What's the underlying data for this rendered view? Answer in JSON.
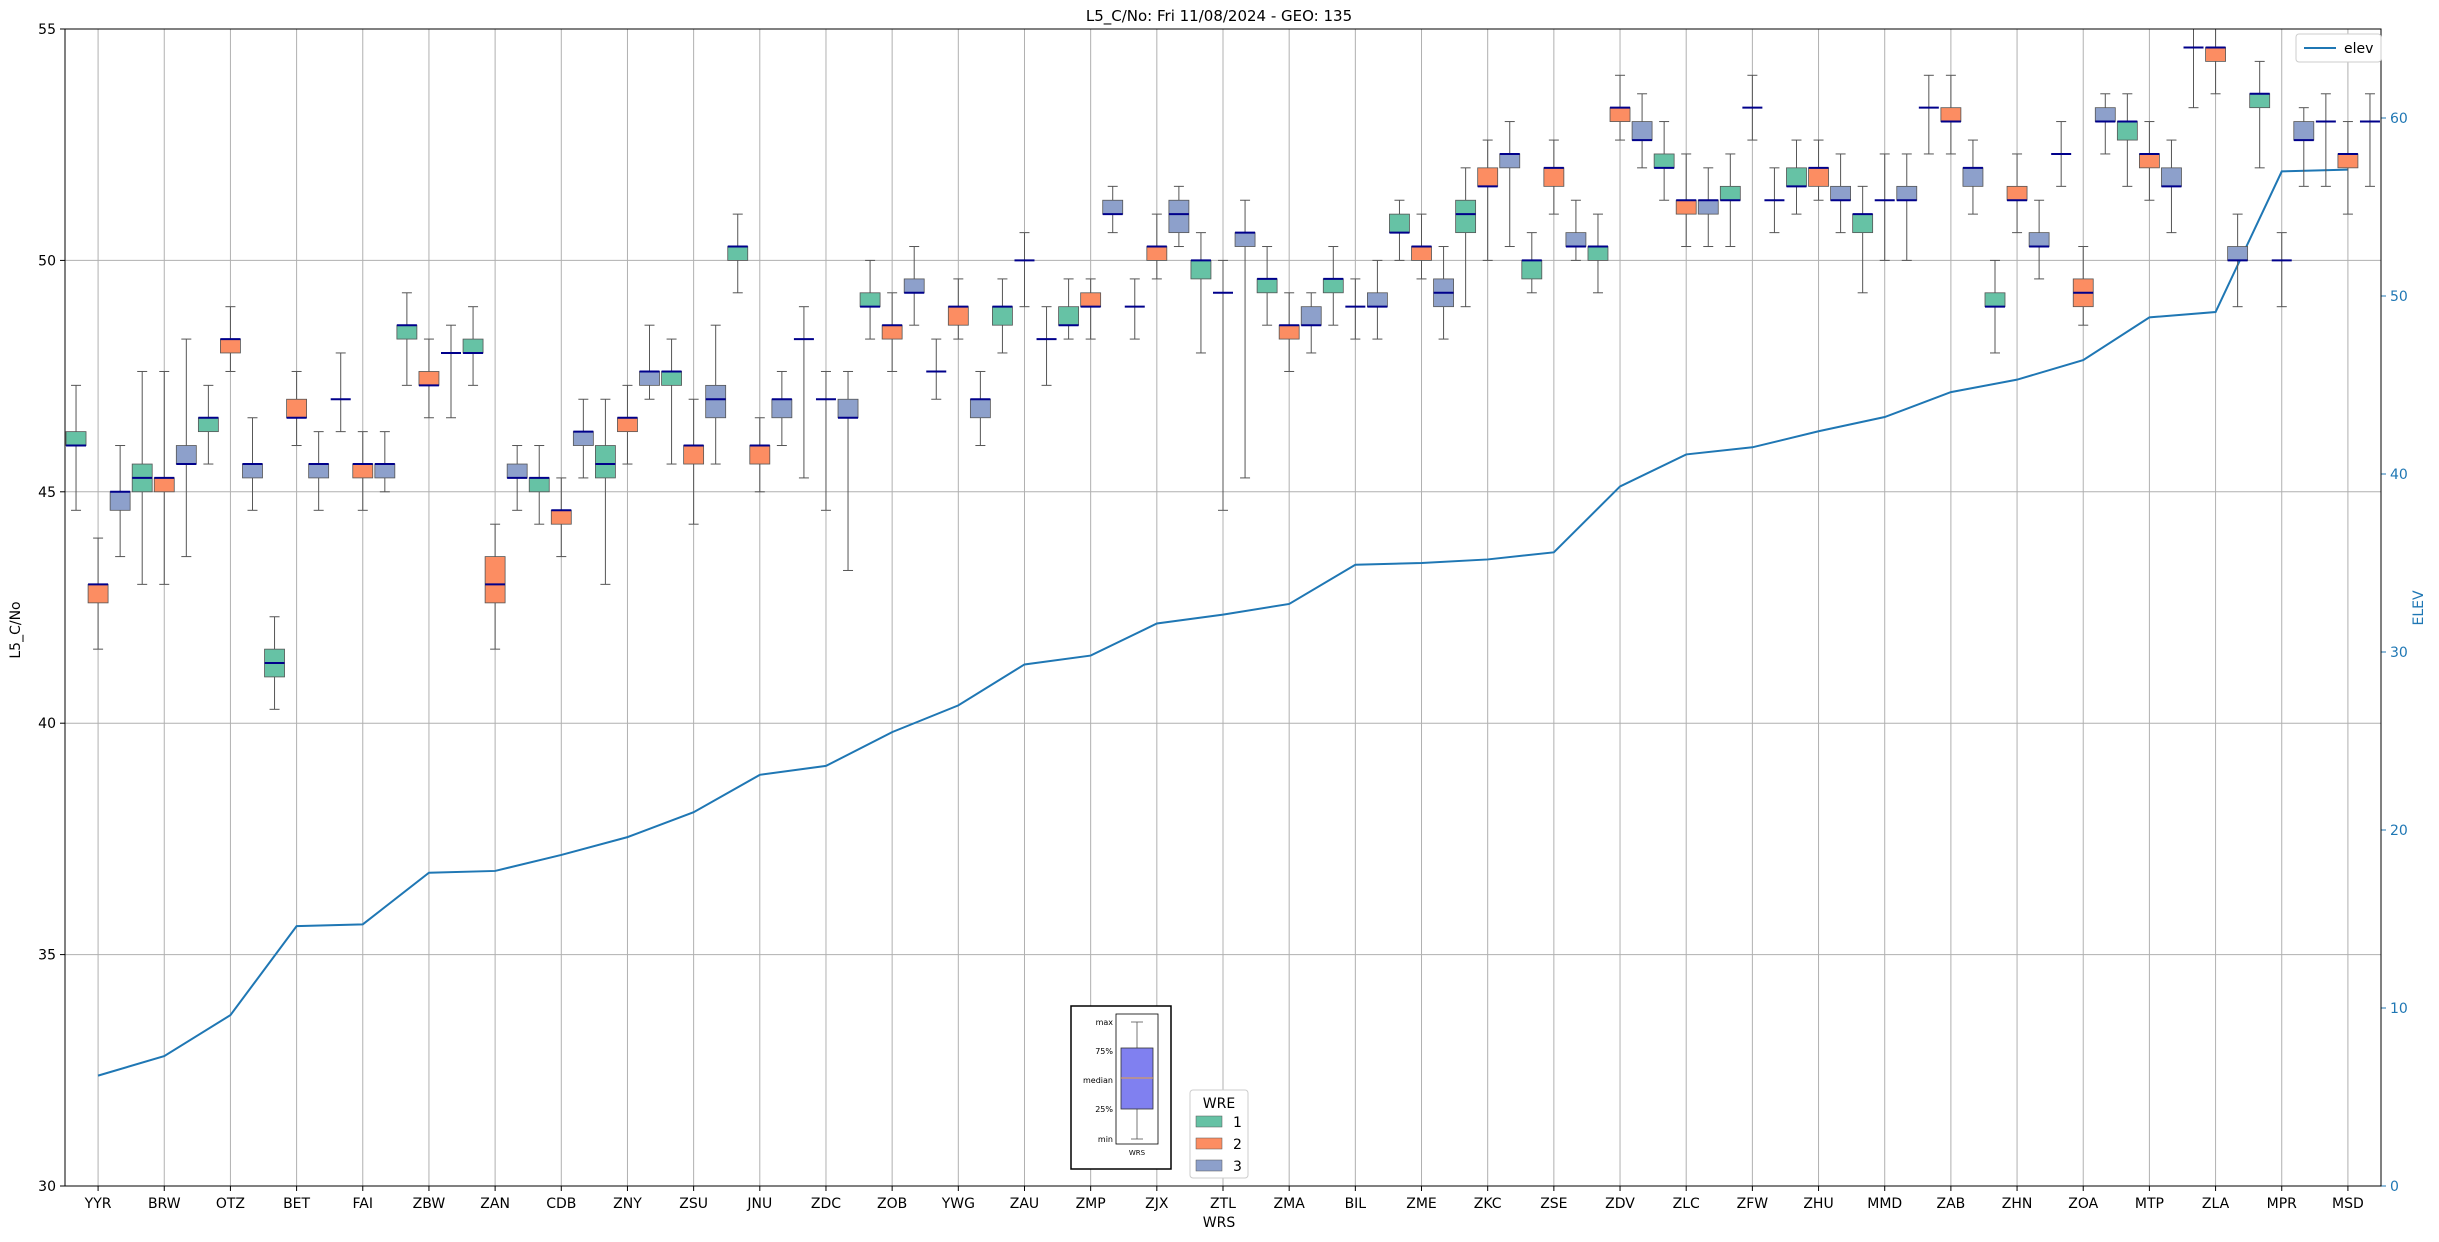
{
  "chart_data": {
    "type": "box",
    "title": "L5_C/No: Fri 11/08/2024 - GEO: 135",
    "xlabel": "WRS",
    "ylabel": "L5_C/No",
    "y2label": "ELEV",
    "ylim": [
      30,
      55
    ],
    "y2lim": [
      0,
      65
    ],
    "yticks": [
      30,
      35,
      40,
      45,
      50,
      55
    ],
    "y2ticks": [
      0,
      10,
      20,
      30,
      40,
      50,
      60
    ],
    "grid": true,
    "categories": [
      "YYR",
      "BRW",
      "OTZ",
      "BET",
      "FAI",
      "ZBW",
      "ZAN",
      "CDB",
      "ZNY",
      "ZSU",
      "JNU",
      "ZDC",
      "ZOB",
      "YWG",
      "ZAU",
      "ZMP",
      "ZJX",
      "ZTL",
      "ZMA",
      "BIL",
      "ZME",
      "ZKC",
      "ZSE",
      "ZDV",
      "ZLC",
      "ZFW",
      "ZHU",
      "MMD",
      "ZAB",
      "ZHN",
      "ZOA",
      "MTP",
      "ZLA",
      "MPR",
      "MSD"
    ],
    "colors": {
      "1": "#66c2a5",
      "2": "#fc8d62",
      "3": "#8da0cb",
      "elev": "#1f77b4",
      "median": "#00008b",
      "whisker": "#555555"
    },
    "legend_wre": {
      "title": "WRE",
      "items": [
        "1",
        "2",
        "3"
      ],
      "placement": "bottom-center"
    },
    "legend_elev": {
      "label": "elev",
      "placement": "top-right"
    },
    "box_key": {
      "labels": [
        "max",
        "75%",
        "median",
        "25%",
        "min"
      ],
      "xlabel": "WRS"
    },
    "boxes": [
      {
        "cat": "YYR",
        "wre": 1,
        "min": 44.6,
        "q1": 46.0,
        "med": 46.0,
        "q3": 46.3,
        "max": 47.3
      },
      {
        "cat": "YYR",
        "wre": 2,
        "min": 41.6,
        "q1": 42.6,
        "med": 43.0,
        "q3": 43.0,
        "max": 44.0
      },
      {
        "cat": "YYR",
        "wre": 3,
        "min": 43.6,
        "q1": 44.6,
        "med": 45.0,
        "q3": 45.0,
        "max": 46.0
      },
      {
        "cat": "BRW",
        "wre": 1,
        "min": 43.0,
        "q1": 45.0,
        "med": 45.3,
        "q3": 45.6,
        "max": 47.6
      },
      {
        "cat": "BRW",
        "wre": 2,
        "min": 43.0,
        "q1": 45.0,
        "med": 45.3,
        "q3": 45.3,
        "max": 47.6
      },
      {
        "cat": "BRW",
        "wre": 3,
        "min": 43.6,
        "q1": 45.6,
        "med": 45.6,
        "q3": 46.0,
        "max": 48.3
      },
      {
        "cat": "OTZ",
        "wre": 1,
        "min": 45.6,
        "q1": 46.3,
        "med": 46.6,
        "q3": 46.6,
        "max": 47.3
      },
      {
        "cat": "OTZ",
        "wre": 2,
        "min": 47.6,
        "q1": 48.0,
        "med": 48.3,
        "q3": 48.3,
        "max": 49.0
      },
      {
        "cat": "OTZ",
        "wre": 3,
        "min": 44.6,
        "q1": 45.3,
        "med": 45.6,
        "q3": 45.6,
        "max": 46.6
      },
      {
        "cat": "BET",
        "wre": 1,
        "min": 40.3,
        "q1": 41.0,
        "med": 41.3,
        "q3": 41.6,
        "max": 42.3
      },
      {
        "cat": "BET",
        "wre": 2,
        "min": 46.0,
        "q1": 46.6,
        "med": 46.6,
        "q3": 47.0,
        "max": 47.6
      },
      {
        "cat": "BET",
        "wre": 3,
        "min": 44.6,
        "q1": 45.3,
        "med": 45.6,
        "q3": 45.6,
        "max": 46.3
      },
      {
        "cat": "FAI",
        "wre": 1,
        "min": 46.3,
        "q1": 47.0,
        "med": 47.0,
        "q3": 47.0,
        "max": 48.0
      },
      {
        "cat": "FAI",
        "wre": 2,
        "min": 44.6,
        "q1": 45.3,
        "med": 45.6,
        "q3": 45.6,
        "max": 46.3
      },
      {
        "cat": "FAI",
        "wre": 3,
        "min": 45.0,
        "q1": 45.3,
        "med": 45.6,
        "q3": 45.6,
        "max": 46.3
      },
      {
        "cat": "ZBW",
        "wre": 1,
        "min": 47.3,
        "q1": 48.3,
        "med": 48.6,
        "q3": 48.6,
        "max": 49.3
      },
      {
        "cat": "ZBW",
        "wre": 2,
        "min": 46.6,
        "q1": 47.3,
        "med": 47.3,
        "q3": 47.6,
        "max": 48.3
      },
      {
        "cat": "ZBW",
        "wre": 3,
        "min": 46.6,
        "q1": 48.0,
        "med": 48.0,
        "q3": 48.0,
        "max": 48.6
      },
      {
        "cat": "ZAN",
        "wre": 1,
        "min": 47.3,
        "q1": 48.0,
        "med": 48.0,
        "q3": 48.3,
        "max": 49.0
      },
      {
        "cat": "ZAN",
        "wre": 2,
        "min": 41.6,
        "q1": 42.6,
        "med": 43.0,
        "q3": 43.6,
        "max": 44.3
      },
      {
        "cat": "ZAN",
        "wre": 3,
        "min": 44.6,
        "q1": 45.3,
        "med": 45.3,
        "q3": 45.6,
        "max": 46.0
      },
      {
        "cat": "CDB",
        "wre": 1,
        "min": 44.3,
        "q1": 45.0,
        "med": 45.3,
        "q3": 45.3,
        "max": 46.0
      },
      {
        "cat": "CDB",
        "wre": 2,
        "min": 43.6,
        "q1": 44.3,
        "med": 44.6,
        "q3": 44.6,
        "max": 45.3
      },
      {
        "cat": "CDB",
        "wre": 3,
        "min": 45.3,
        "q1": 46.0,
        "med": 46.3,
        "q3": 46.3,
        "max": 47.0
      },
      {
        "cat": "ZNY",
        "wre": 1,
        "min": 43.0,
        "q1": 45.3,
        "med": 45.6,
        "q3": 46.0,
        "max": 47.0
      },
      {
        "cat": "ZNY",
        "wre": 2,
        "min": 45.6,
        "q1": 46.3,
        "med": 46.6,
        "q3": 46.6,
        "max": 47.3
      },
      {
        "cat": "ZNY",
        "wre": 3,
        "min": 47.0,
        "q1": 47.3,
        "med": 47.6,
        "q3": 47.6,
        "max": 48.6
      },
      {
        "cat": "ZSU",
        "wre": 1,
        "min": 45.6,
        "q1": 47.3,
        "med": 47.6,
        "q3": 47.6,
        "max": 48.3
      },
      {
        "cat": "ZSU",
        "wre": 2,
        "min": 44.3,
        "q1": 45.6,
        "med": 46.0,
        "q3": 46.0,
        "max": 47.0
      },
      {
        "cat": "ZSU",
        "wre": 3,
        "min": 45.6,
        "q1": 46.6,
        "med": 47.0,
        "q3": 47.3,
        "max": 48.6
      },
      {
        "cat": "JNU",
        "wre": 1,
        "min": 49.3,
        "q1": 50.0,
        "med": 50.3,
        "q3": 50.3,
        "max": 51.0
      },
      {
        "cat": "JNU",
        "wre": 2,
        "min": 45.0,
        "q1": 45.6,
        "med": 46.0,
        "q3": 46.0,
        "max": 46.6
      },
      {
        "cat": "JNU",
        "wre": 3,
        "min": 46.0,
        "q1": 46.6,
        "med": 47.0,
        "q3": 47.0,
        "max": 47.6
      },
      {
        "cat": "ZDC",
        "wre": 1,
        "min": 45.3,
        "q1": 48.3,
        "med": 48.3,
        "q3": 48.3,
        "max": 49.0
      },
      {
        "cat": "ZDC",
        "wre": 2,
        "min": 44.6,
        "q1": 47.0,
        "med": 47.0,
        "q3": 47.0,
        "max": 47.6
      },
      {
        "cat": "ZDC",
        "wre": 3,
        "min": 43.3,
        "q1": 46.6,
        "med": 46.6,
        "q3": 47.0,
        "max": 47.6
      },
      {
        "cat": "ZOB",
        "wre": 1,
        "min": 48.3,
        "q1": 49.0,
        "med": 49.0,
        "q3": 49.3,
        "max": 50.0
      },
      {
        "cat": "ZOB",
        "wre": 2,
        "min": 47.6,
        "q1": 48.3,
        "med": 48.6,
        "q3": 48.6,
        "max": 49.3
      },
      {
        "cat": "ZOB",
        "wre": 3,
        "min": 48.6,
        "q1": 49.3,
        "med": 49.3,
        "q3": 49.6,
        "max": 50.3
      },
      {
        "cat": "YWG",
        "wre": 1,
        "min": 47.0,
        "q1": 47.6,
        "med": 47.6,
        "q3": 47.6,
        "max": 48.3
      },
      {
        "cat": "YWG",
        "wre": 2,
        "min": 48.3,
        "q1": 48.6,
        "med": 49.0,
        "q3": 49.0,
        "max": 49.6
      },
      {
        "cat": "YWG",
        "wre": 3,
        "min": 46.0,
        "q1": 46.6,
        "med": 47.0,
        "q3": 47.0,
        "max": 47.6
      },
      {
        "cat": "ZAU",
        "wre": 1,
        "min": 48.0,
        "q1": 48.6,
        "med": 49.0,
        "q3": 49.0,
        "max": 49.6
      },
      {
        "cat": "ZAU",
        "wre": 2,
        "min": 49.0,
        "q1": 50.0,
        "med": 50.0,
        "q3": 50.0,
        "max": 50.6
      },
      {
        "cat": "ZAU",
        "wre": 3,
        "min": 47.3,
        "q1": 48.3,
        "med": 48.3,
        "q3": 48.3,
        "max": 49.0
      },
      {
        "cat": "ZMP",
        "wre": 1,
        "min": 48.3,
        "q1": 48.6,
        "med": 48.6,
        "q3": 49.0,
        "max": 49.6
      },
      {
        "cat": "ZMP",
        "wre": 2,
        "min": 48.3,
        "q1": 49.0,
        "med": 49.0,
        "q3": 49.3,
        "max": 49.6
      },
      {
        "cat": "ZMP",
        "wre": 3,
        "min": 50.6,
        "q1": 51.0,
        "med": 51.0,
        "q3": 51.3,
        "max": 51.6
      },
      {
        "cat": "ZJX",
        "wre": 1,
        "min": 48.3,
        "q1": 49.0,
        "med": 49.0,
        "q3": 49.0,
        "max": 49.6
      },
      {
        "cat": "ZJX",
        "wre": 2,
        "min": 49.6,
        "q1": 50.0,
        "med": 50.3,
        "q3": 50.3,
        "max": 51.0
      },
      {
        "cat": "ZJX",
        "wre": 3,
        "min": 50.3,
        "q1": 50.6,
        "med": 51.0,
        "q3": 51.3,
        "max": 51.6
      },
      {
        "cat": "ZTL",
        "wre": 1,
        "min": 48.0,
        "q1": 49.6,
        "med": 50.0,
        "q3": 50.0,
        "max": 50.6
      },
      {
        "cat": "ZTL",
        "wre": 2,
        "min": 44.6,
        "q1": 49.3,
        "med": 49.3,
        "q3": 49.3,
        "max": 50.0
      },
      {
        "cat": "ZTL",
        "wre": 3,
        "min": 45.3,
        "q1": 50.3,
        "med": 50.6,
        "q3": 50.6,
        "max": 51.3
      },
      {
        "cat": "ZMA",
        "wre": 1,
        "min": 48.6,
        "q1": 49.3,
        "med": 49.6,
        "q3": 49.6,
        "max": 50.3
      },
      {
        "cat": "ZMA",
        "wre": 2,
        "min": 47.6,
        "q1": 48.3,
        "med": 48.6,
        "q3": 48.6,
        "max": 49.3
      },
      {
        "cat": "ZMA",
        "wre": 3,
        "min": 48.0,
        "q1": 48.6,
        "med": 48.6,
        "q3": 49.0,
        "max": 49.3
      },
      {
        "cat": "BIL",
        "wre": 1,
        "min": 48.6,
        "q1": 49.3,
        "med": 49.6,
        "q3": 49.6,
        "max": 50.3
      },
      {
        "cat": "BIL",
        "wre": 2,
        "min": 48.3,
        "q1": 49.0,
        "med": 49.0,
        "q3": 49.0,
        "max": 49.6
      },
      {
        "cat": "BIL",
        "wre": 3,
        "min": 48.3,
        "q1": 49.0,
        "med": 49.0,
        "q3": 49.3,
        "max": 50.0
      },
      {
        "cat": "ZME",
        "wre": 1,
        "min": 50.0,
        "q1": 50.6,
        "med": 50.6,
        "q3": 51.0,
        "max": 51.3
      },
      {
        "cat": "ZME",
        "wre": 2,
        "min": 49.6,
        "q1": 50.0,
        "med": 50.3,
        "q3": 50.3,
        "max": 51.0
      },
      {
        "cat": "ZME",
        "wre": 3,
        "min": 48.3,
        "q1": 49.0,
        "med": 49.3,
        "q3": 49.6,
        "max": 50.3
      },
      {
        "cat": "ZKC",
        "wre": 1,
        "min": 49.0,
        "q1": 50.6,
        "med": 51.0,
        "q3": 51.3,
        "max": 52.0
      },
      {
        "cat": "ZKC",
        "wre": 2,
        "min": 50.0,
        "q1": 51.6,
        "med": 51.6,
        "q3": 52.0,
        "max": 52.6
      },
      {
        "cat": "ZKC",
        "wre": 3,
        "min": 50.3,
        "q1": 52.0,
        "med": 52.3,
        "q3": 52.3,
        "max": 53.0
      },
      {
        "cat": "ZSE",
        "wre": 1,
        "min": 49.3,
        "q1": 49.6,
        "med": 50.0,
        "q3": 50.0,
        "max": 50.6
      },
      {
        "cat": "ZSE",
        "wre": 2,
        "min": 51.0,
        "q1": 51.6,
        "med": 52.0,
        "q3": 52.0,
        "max": 52.6
      },
      {
        "cat": "ZSE",
        "wre": 3,
        "min": 50.0,
        "q1": 50.3,
        "med": 50.3,
        "q3": 50.6,
        "max": 51.3
      },
      {
        "cat": "ZDV",
        "wre": 1,
        "min": 49.3,
        "q1": 50.0,
        "med": 50.3,
        "q3": 50.3,
        "max": 51.0
      },
      {
        "cat": "ZDV",
        "wre": 2,
        "min": 52.6,
        "q1": 53.0,
        "med": 53.3,
        "q3": 53.3,
        "max": 54.0
      },
      {
        "cat": "ZDV",
        "wre": 3,
        "min": 52.0,
        "q1": 52.6,
        "med": 52.6,
        "q3": 53.0,
        "max": 53.6
      },
      {
        "cat": "ZLC",
        "wre": 1,
        "min": 51.3,
        "q1": 52.0,
        "med": 52.0,
        "q3": 52.3,
        "max": 53.0
      },
      {
        "cat": "ZLC",
        "wre": 2,
        "min": 50.3,
        "q1": 51.0,
        "med": 51.3,
        "q3": 51.3,
        "max": 52.3
      },
      {
        "cat": "ZLC",
        "wre": 3,
        "min": 50.3,
        "q1": 51.0,
        "med": 51.3,
        "q3": 51.3,
        "max": 52.0
      },
      {
        "cat": "ZFW",
        "wre": 1,
        "min": 50.3,
        "q1": 51.3,
        "med": 51.3,
        "q3": 51.6,
        "max": 52.3
      },
      {
        "cat": "ZFW",
        "wre": 2,
        "min": 52.6,
        "q1": 53.3,
        "med": 53.3,
        "q3": 53.3,
        "max": 54.0
      },
      {
        "cat": "ZFW",
        "wre": 3,
        "min": 50.6,
        "q1": 51.3,
        "med": 51.3,
        "q3": 51.3,
        "max": 52.0
      },
      {
        "cat": "ZHU",
        "wre": 1,
        "min": 51.0,
        "q1": 51.6,
        "med": 51.6,
        "q3": 52.0,
        "max": 52.6
      },
      {
        "cat": "ZHU",
        "wre": 2,
        "min": 51.3,
        "q1": 51.6,
        "med": 52.0,
        "q3": 52.0,
        "max": 52.6
      },
      {
        "cat": "ZHU",
        "wre": 3,
        "min": 50.6,
        "q1": 51.3,
        "med": 51.3,
        "q3": 51.6,
        "max": 52.3
      },
      {
        "cat": "MMD",
        "wre": 1,
        "min": 49.3,
        "q1": 50.6,
        "med": 51.0,
        "q3": 51.0,
        "max": 51.6
      },
      {
        "cat": "MMD",
        "wre": 2,
        "min": 50.0,
        "q1": 51.3,
        "med": 51.3,
        "q3": 51.3,
        "max": 52.3
      },
      {
        "cat": "MMD",
        "wre": 3,
        "min": 50.0,
        "q1": 51.3,
        "med": 51.3,
        "q3": 51.6,
        "max": 52.3
      },
      {
        "cat": "ZAB",
        "wre": 1,
        "min": 52.3,
        "q1": 53.3,
        "med": 53.3,
        "q3": 53.3,
        "max": 54.0
      },
      {
        "cat": "ZAB",
        "wre": 2,
        "min": 52.3,
        "q1": 53.0,
        "med": 53.0,
        "q3": 53.3,
        "max": 54.0
      },
      {
        "cat": "ZAB",
        "wre": 3,
        "min": 51.0,
        "q1": 51.6,
        "med": 52.0,
        "q3": 52.0,
        "max": 52.6
      },
      {
        "cat": "ZHN",
        "wre": 1,
        "min": 48.0,
        "q1": 49.0,
        "med": 49.0,
        "q3": 49.3,
        "max": 50.0
      },
      {
        "cat": "ZHN",
        "wre": 2,
        "min": 50.6,
        "q1": 51.3,
        "med": 51.3,
        "q3": 51.6,
        "max": 52.3
      },
      {
        "cat": "ZHN",
        "wre": 3,
        "min": 49.6,
        "q1": 50.3,
        "med": 50.3,
        "q3": 50.6,
        "max": 51.3
      },
      {
        "cat": "ZOA",
        "wre": 1,
        "min": 51.6,
        "q1": 52.3,
        "med": 52.3,
        "q3": 52.3,
        "max": 53.0
      },
      {
        "cat": "ZOA",
        "wre": 2,
        "min": 48.6,
        "q1": 49.0,
        "med": 49.3,
        "q3": 49.6,
        "max": 50.3
      },
      {
        "cat": "ZOA",
        "wre": 3,
        "min": 52.3,
        "q1": 53.0,
        "med": 53.0,
        "q3": 53.3,
        "max": 53.6
      },
      {
        "cat": "MTP",
        "wre": 1,
        "min": 51.6,
        "q1": 52.6,
        "med": 53.0,
        "q3": 53.0,
        "max": 53.6
      },
      {
        "cat": "MTP",
        "wre": 2,
        "min": 51.3,
        "q1": 52.0,
        "med": 52.3,
        "q3": 52.3,
        "max": 53.0
      },
      {
        "cat": "MTP",
        "wre": 3,
        "min": 50.6,
        "q1": 51.6,
        "med": 51.6,
        "q3": 52.0,
        "max": 52.6
      },
      {
        "cat": "ZLA",
        "wre": 1,
        "min": 53.3,
        "q1": 54.6,
        "med": 54.6,
        "q3": 54.6,
        "max": 55.0
      },
      {
        "cat": "ZLA",
        "wre": 2,
        "min": 53.6,
        "q1": 54.3,
        "med": 54.6,
        "q3": 54.6,
        "max": 55.0
      },
      {
        "cat": "ZLA",
        "wre": 3,
        "min": 49.0,
        "q1": 50.0,
        "med": 50.0,
        "q3": 50.3,
        "max": 51.0
      },
      {
        "cat": "MPR",
        "wre": 1,
        "min": 52.0,
        "q1": 53.3,
        "med": 53.6,
        "q3": 53.6,
        "max": 54.3
      },
      {
        "cat": "MPR",
        "wre": 2,
        "min": 49.0,
        "q1": 50.0,
        "med": 50.0,
        "q3": 50.0,
        "max": 50.6
      },
      {
        "cat": "MPR",
        "wre": 3,
        "min": 51.6,
        "q1": 52.6,
        "med": 52.6,
        "q3": 53.0,
        "max": 53.3
      },
      {
        "cat": "MSD",
        "wre": 1,
        "min": 51.6,
        "q1": 53.0,
        "med": 53.0,
        "q3": 53.0,
        "max": 53.6
      },
      {
        "cat": "MSD",
        "wre": 2,
        "min": 51.0,
        "q1": 52.0,
        "med": 52.3,
        "q3": 52.3,
        "max": 53.0
      },
      {
        "cat": "MSD",
        "wre": 3,
        "min": 51.6,
        "q1": 53.0,
        "med": 53.0,
        "q3": 53.0,
        "max": 53.6
      }
    ],
    "elev_series": {
      "name": "elev",
      "x": [
        "YYR",
        "BRW",
        "OTZ",
        "BET",
        "FAI",
        "ZBW",
        "ZAN",
        "CDB",
        "ZNY",
        "ZSU",
        "JNU",
        "ZDC",
        "ZOB",
        "YWG",
        "ZAU",
        "ZMP",
        "ZJX",
        "ZTL",
        "ZMA",
        "BIL",
        "ZME",
        "ZKC",
        "ZSE",
        "ZDV",
        "ZLC",
        "ZFW",
        "ZHU",
        "MMD",
        "ZAB",
        "ZHN",
        "ZOA",
        "MTP",
        "ZLA",
        "MPR",
        "MSD"
      ],
      "values": [
        6.2,
        7.3,
        9.6,
        14.6,
        14.7,
        17.6,
        17.7,
        18.6,
        19.6,
        21.0,
        23.1,
        23.6,
        25.5,
        27.0,
        29.3,
        29.8,
        31.6,
        32.1,
        32.7,
        34.9,
        35.0,
        35.2,
        35.6,
        39.3,
        41.1,
        41.5,
        42.4,
        43.2,
        44.6,
        45.3,
        46.4,
        48.8,
        49.1,
        57.0,
        57.1
      ]
    }
  }
}
